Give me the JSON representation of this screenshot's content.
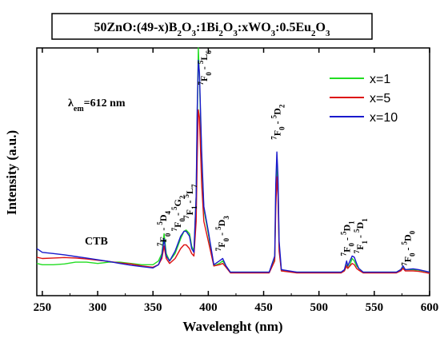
{
  "chart_data": {
    "type": "line",
    "title_parts": [
      {
        "t": "50ZnO:(49-x)B",
        "sub": false
      },
      {
        "t": "2",
        "sub": true
      },
      {
        "t": "O",
        "sub": false
      },
      {
        "t": "3",
        "sub": true
      },
      {
        "t": ":1Bi",
        "sub": false
      },
      {
        "t": "2",
        "sub": true
      },
      {
        "t": "O",
        "sub": false
      },
      {
        "t": "3",
        "sub": true
      },
      {
        "t": ":xWO",
        "sub": false
      },
      {
        "t": "3",
        "sub": true
      },
      {
        "t": ":0.5Eu",
        "sub": false
      },
      {
        "t": "2",
        "sub": true
      },
      {
        "t": "O",
        "sub": false
      },
      {
        "t": "3",
        "sub": true
      }
    ],
    "xlabel": "Wavelenght (nm)",
    "ylabel": "Intensity (a.u.)",
    "xlim": [
      245,
      600
    ],
    "ylim": [
      0,
      100
    ],
    "xticks": [
      250,
      300,
      350,
      400,
      450,
      500,
      550,
      600
    ],
    "excitation_label": {
      "prefix": "λ",
      "sub": "em",
      "suffix": "=612 nm"
    },
    "ctb_label": "CTB",
    "legend_position": "top-right",
    "series": [
      {
        "name": "x=1",
        "color": "#22dd22",
        "points": [
          [
            245,
            13
          ],
          [
            250,
            12.5
          ],
          [
            260,
            12.5
          ],
          [
            270,
            12.8
          ],
          [
            280,
            13.5
          ],
          [
            290,
            13.5
          ],
          [
            300,
            13
          ],
          [
            310,
            13.5
          ],
          [
            320,
            13.5
          ],
          [
            330,
            13
          ],
          [
            340,
            12.5
          ],
          [
            350,
            12.5
          ],
          [
            355,
            14
          ],
          [
            358,
            17
          ],
          [
            360,
            25
          ],
          [
            362,
            17
          ],
          [
            365,
            14
          ],
          [
            370,
            17
          ],
          [
            375,
            23
          ],
          [
            378,
            26
          ],
          [
            380,
            26.5
          ],
          [
            383,
            25
          ],
          [
            385,
            20
          ],
          [
            387,
            18
          ],
          [
            389,
            40
          ],
          [
            390,
            70
          ],
          [
            391,
            100
          ],
          [
            392,
            88
          ],
          [
            394,
            55
          ],
          [
            396,
            35
          ],
          [
            400,
            25
          ],
          [
            405,
            12
          ],
          [
            410,
            13
          ],
          [
            413,
            14
          ],
          [
            416,
            12
          ],
          [
            420,
            9.5
          ],
          [
            440,
            9.5
          ],
          [
            455,
            9.5
          ],
          [
            460,
            15
          ],
          [
            461,
            40
          ],
          [
            462,
            53
          ],
          [
            463,
            45
          ],
          [
            464,
            20
          ],
          [
            466,
            10
          ],
          [
            480,
            9.5
          ],
          [
            500,
            9.5
          ],
          [
            520,
            9.5
          ],
          [
            523,
            10
          ],
          [
            525,
            12.5
          ],
          [
            526,
            11
          ],
          [
            528,
            12.5
          ],
          [
            530,
            15
          ],
          [
            532,
            14
          ],
          [
            534,
            12
          ],
          [
            536,
            11
          ],
          [
            540,
            9.5
          ],
          [
            570,
            9.5
          ],
          [
            574,
            10.5
          ],
          [
            576,
            11.5
          ],
          [
            578,
            10.5
          ],
          [
            585,
            10.5
          ],
          [
            590,
            10.3
          ],
          [
            600,
            9.5
          ]
        ]
      },
      {
        "name": "x=5",
        "color": "#dd1111",
        "points": [
          [
            245,
            15.5
          ],
          [
            250,
            15
          ],
          [
            260,
            15.2
          ],
          [
            270,
            15.4
          ],
          [
            280,
            15.2
          ],
          [
            290,
            14.8
          ],
          [
            300,
            14.3
          ],
          [
            310,
            13.8
          ],
          [
            320,
            13.2
          ],
          [
            330,
            12.8
          ],
          [
            340,
            12
          ],
          [
            350,
            11.5
          ],
          [
            355,
            12.5
          ],
          [
            358,
            15
          ],
          [
            360,
            20
          ],
          [
            362,
            15
          ],
          [
            365,
            13
          ],
          [
            370,
            15
          ],
          [
            375,
            19
          ],
          [
            378,
            20.5
          ],
          [
            380,
            20.5
          ],
          [
            383,
            19
          ],
          [
            385,
            17
          ],
          [
            387,
            16
          ],
          [
            389,
            30
          ],
          [
            390,
            55
          ],
          [
            391,
            75
          ],
          [
            392,
            72
          ],
          [
            394,
            45
          ],
          [
            396,
            30
          ],
          [
            400,
            22
          ],
          [
            405,
            12
          ],
          [
            410,
            12.5
          ],
          [
            413,
            13
          ],
          [
            416,
            11.5
          ],
          [
            420,
            9.2
          ],
          [
            440,
            9.2
          ],
          [
            455,
            9.2
          ],
          [
            460,
            14
          ],
          [
            461,
            35
          ],
          [
            462,
            48
          ],
          [
            463,
            40
          ],
          [
            464,
            18
          ],
          [
            466,
            10
          ],
          [
            480,
            9.2
          ],
          [
            500,
            9.2
          ],
          [
            520,
            9.2
          ],
          [
            523,
            10
          ],
          [
            525,
            12
          ],
          [
            526,
            11
          ],
          [
            528,
            12
          ],
          [
            530,
            13
          ],
          [
            532,
            12.5
          ],
          [
            534,
            11
          ],
          [
            536,
            10.3
          ],
          [
            540,
            9.2
          ],
          [
            570,
            9.2
          ],
          [
            574,
            10
          ],
          [
            576,
            11
          ],
          [
            578,
            10
          ],
          [
            585,
            10
          ],
          [
            590,
            9.8
          ],
          [
            600,
            9
          ]
        ]
      },
      {
        "name": "x=10",
        "color": "#1a1acc",
        "points": [
          [
            245,
            19
          ],
          [
            250,
            17.5
          ],
          [
            260,
            17
          ],
          [
            270,
            16.5
          ],
          [
            280,
            15.8
          ],
          [
            290,
            15.2
          ],
          [
            300,
            14.5
          ],
          [
            310,
            13.8
          ],
          [
            320,
            13
          ],
          [
            330,
            12.3
          ],
          [
            340,
            11.7
          ],
          [
            350,
            11.2
          ],
          [
            355,
            12.5
          ],
          [
            358,
            16
          ],
          [
            360,
            23
          ],
          [
            362,
            16
          ],
          [
            365,
            14
          ],
          [
            370,
            18
          ],
          [
            375,
            24
          ],
          [
            378,
            26
          ],
          [
            380,
            26
          ],
          [
            383,
            24
          ],
          [
            385,
            19
          ],
          [
            387,
            17.5
          ],
          [
            389,
            40
          ],
          [
            390,
            75
          ],
          [
            391,
            95
          ],
          [
            392,
            90
          ],
          [
            394,
            58
          ],
          [
            396,
            36
          ],
          [
            400,
            26
          ],
          [
            405,
            12.5
          ],
          [
            410,
            14
          ],
          [
            413,
            15
          ],
          [
            416,
            12
          ],
          [
            420,
            9.5
          ],
          [
            440,
            9.5
          ],
          [
            455,
            9.5
          ],
          [
            460,
            16
          ],
          [
            461,
            45
          ],
          [
            462,
            58
          ],
          [
            463,
            48
          ],
          [
            464,
            22
          ],
          [
            466,
            10.5
          ],
          [
            480,
            9.5
          ],
          [
            500,
            9.5
          ],
          [
            520,
            9.5
          ],
          [
            523,
            10.5
          ],
          [
            525,
            14
          ],
          [
            526,
            12
          ],
          [
            528,
            14
          ],
          [
            530,
            16
          ],
          [
            532,
            15.5
          ],
          [
            534,
            13
          ],
          [
            536,
            11
          ],
          [
            540,
            9.5
          ],
          [
            570,
            9.5
          ],
          [
            574,
            10.5
          ],
          [
            576,
            12
          ],
          [
            578,
            10.5
          ],
          [
            585,
            10.8
          ],
          [
            590,
            10.5
          ],
          [
            600,
            9.5
          ]
        ]
      }
    ],
    "annotations": [
      {
        "id": "a1",
        "pre": "7",
        "p1": "F",
        "s1": "0",
        "mid": " - ",
        "pre2": "5",
        "p2": "D",
        "s2": "4",
        "x": 362,
        "y": 20
      },
      {
        "id": "a2",
        "pre": "7",
        "p1": "F",
        "s1": "0",
        "mid": " - ",
        "pre2": "5",
        "p2": "G",
        "s2": "2",
        "x": 375,
        "y": 26
      },
      {
        "id": "a3",
        "pre": "7",
        "p1": "F",
        "s1": "1",
        "mid": " - ",
        "pre2": "5",
        "p2": "L",
        "s2": "7",
        "x": 386,
        "y": 31
      },
      {
        "id": "a4",
        "pre": "7",
        "p1": "F",
        "s1": "0",
        "mid": " - ",
        "pre2": "5",
        "p2": "L",
        "s2": "6",
        "x": 399,
        "y": 85
      },
      {
        "id": "a5",
        "pre": "7",
        "p1": "F",
        "s1": "0",
        "mid": " - ",
        "pre2": "5",
        "p2": "D",
        "s2": "3",
        "x": 415,
        "y": 18
      },
      {
        "id": "a6",
        "pre": "7",
        "p1": "F",
        "s1": "0",
        "mid": " - ",
        "pre2": "5",
        "p2": "D",
        "s2": "2",
        "x": 465,
        "y": 63
      },
      {
        "id": "a7",
        "pre": "7",
        "p1": "F",
        "s1": "0",
        "mid": " - ",
        "pre2": "5",
        "p2": "D",
        "s2": "1",
        "x": 528,
        "y": 16
      },
      {
        "id": "a8",
        "pre": "7",
        "p1": "F",
        "s1": "1",
        "mid": " - ",
        "pre2": "5",
        "p2": "D",
        "s2": "1",
        "x": 540,
        "y": 17
      },
      {
        "id": "a9",
        "pre": "7",
        "p1": "F",
        "s1": "0",
        "mid": " - ",
        "pre2": "5",
        "p2": "D",
        "s2": "0",
        "x": 583,
        "y": 12
      }
    ]
  }
}
